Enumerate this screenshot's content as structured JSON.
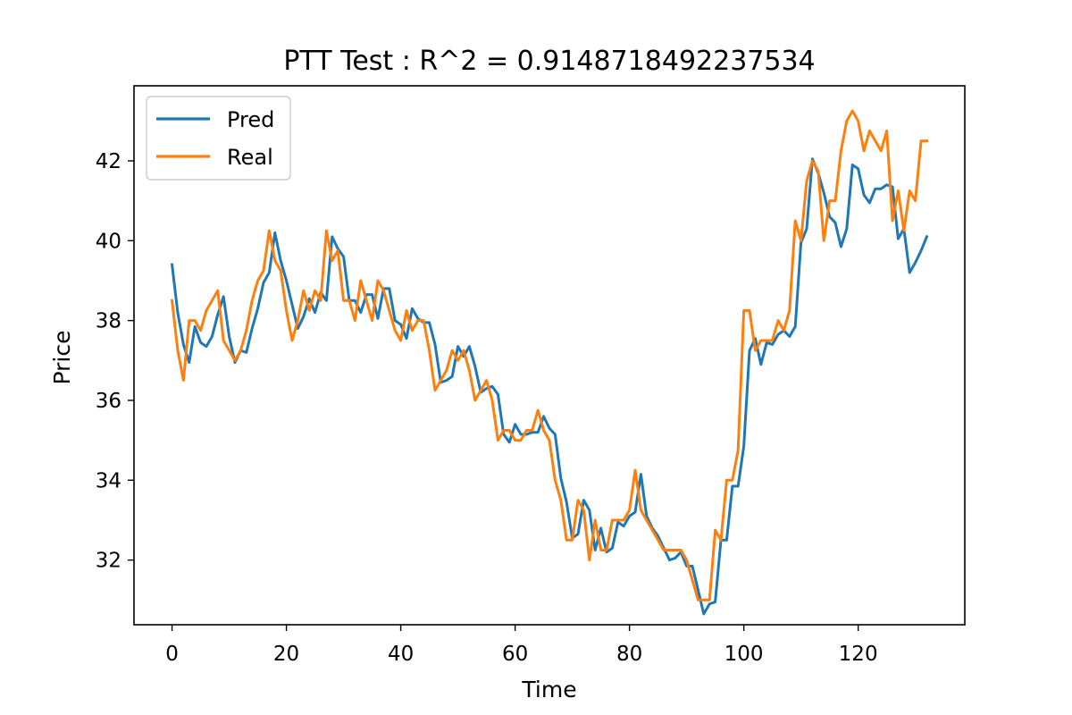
{
  "chart_data": {
    "type": "line",
    "title": "PTT Test : R^2 = 0.9148718492237534",
    "xlabel": "Time",
    "ylabel": "Price",
    "xlim": [
      -6.65,
      138.65
    ],
    "ylim": [
      30.38,
      43.88
    ],
    "xticks": [
      0,
      20,
      40,
      60,
      80,
      100,
      120
    ],
    "yticks": [
      32,
      34,
      36,
      38,
      40,
      42
    ],
    "grid": false,
    "legend_position": "upper-left",
    "series": [
      {
        "name": "Pred",
        "color": "#1f77b4",
        "values": [
          39.4,
          38.2,
          37.4,
          36.95,
          37.85,
          37.45,
          37.35,
          37.6,
          38.15,
          38.6,
          37.6,
          36.95,
          37.25,
          37.2,
          37.8,
          38.3,
          38.95,
          39.2,
          40.2,
          39.5,
          39.0,
          38.4,
          37.8,
          38.1,
          38.55,
          38.2,
          38.7,
          38.5,
          40.1,
          39.8,
          39.6,
          38.5,
          38.5,
          38.2,
          38.65,
          38.65,
          38.05,
          38.8,
          38.8,
          38.0,
          37.9,
          37.55,
          38.3,
          38.05,
          37.95,
          37.95,
          37.4,
          36.45,
          36.5,
          36.6,
          37.35,
          37.1,
          37.35,
          36.85,
          36.2,
          36.3,
          36.35,
          36.15,
          35.15,
          34.95,
          35.4,
          35.15,
          35.15,
          35.2,
          35.2,
          35.6,
          35.3,
          35.15,
          34.05,
          33.45,
          32.55,
          32.65,
          33.5,
          33.25,
          32.25,
          32.8,
          32.2,
          32.3,
          32.95,
          32.85,
          33.1,
          33.2,
          34.15,
          33.1,
          32.8,
          32.6,
          32.3,
          32.0,
          32.05,
          32.2,
          31.85,
          31.85,
          31.25,
          30.65,
          30.9,
          30.95,
          32.5,
          32.5,
          33.85,
          33.85,
          34.85,
          37.25,
          37.55,
          36.9,
          37.45,
          37.4,
          37.65,
          37.75,
          37.6,
          37.85,
          39.95,
          40.3,
          42.05,
          41.7,
          41.2,
          40.6,
          40.45,
          39.85,
          40.3,
          41.9,
          41.8,
          41.15,
          40.95,
          41.3,
          41.3,
          41.4,
          41.35,
          40.05,
          40.3,
          39.2,
          39.45,
          39.75,
          40.1
        ]
      },
      {
        "name": "Real",
        "color": "#ff7f0e",
        "values": [
          38.5,
          37.25,
          36.5,
          38.0,
          38.0,
          37.75,
          38.25,
          38.5,
          38.75,
          37.5,
          37.25,
          37.0,
          37.25,
          37.75,
          38.5,
          39.0,
          39.25,
          40.25,
          39.5,
          39.25,
          38.25,
          37.5,
          38.0,
          38.75,
          38.25,
          38.75,
          38.5,
          40.25,
          39.5,
          39.75,
          38.5,
          38.5,
          38.0,
          39.0,
          38.5,
          38.0,
          39.0,
          38.75,
          38.25,
          37.75,
          37.5,
          38.25,
          37.75,
          38.0,
          38.0,
          37.25,
          36.25,
          36.5,
          36.75,
          37.25,
          37.0,
          37.25,
          36.75,
          36.0,
          36.25,
          36.5,
          36.0,
          35.0,
          35.25,
          35.25,
          35.0,
          35.0,
          35.25,
          35.25,
          35.75,
          35.25,
          35.0,
          34.0,
          33.5,
          32.5,
          32.5,
          33.5,
          33.25,
          32.0,
          33.0,
          32.25,
          32.25,
          33.0,
          33.0,
          33.0,
          33.25,
          34.25,
          33.25,
          33.0,
          32.75,
          32.5,
          32.25,
          32.25,
          32.25,
          32.25,
          32.0,
          31.5,
          31.0,
          31.0,
          31.0,
          32.75,
          32.5,
          34.0,
          34.0,
          34.75,
          38.25,
          38.25,
          37.25,
          37.5,
          37.5,
          37.5,
          38.0,
          37.75,
          38.25,
          40.5,
          40.0,
          41.5,
          42.0,
          41.75,
          40.0,
          41.0,
          41.0,
          42.25,
          43.0,
          43.25,
          43.0,
          42.25,
          42.75,
          42.5,
          42.25,
          42.75,
          40.5,
          41.25,
          40.25,
          41.25,
          41.0,
          42.5,
          42.5
        ]
      }
    ]
  }
}
